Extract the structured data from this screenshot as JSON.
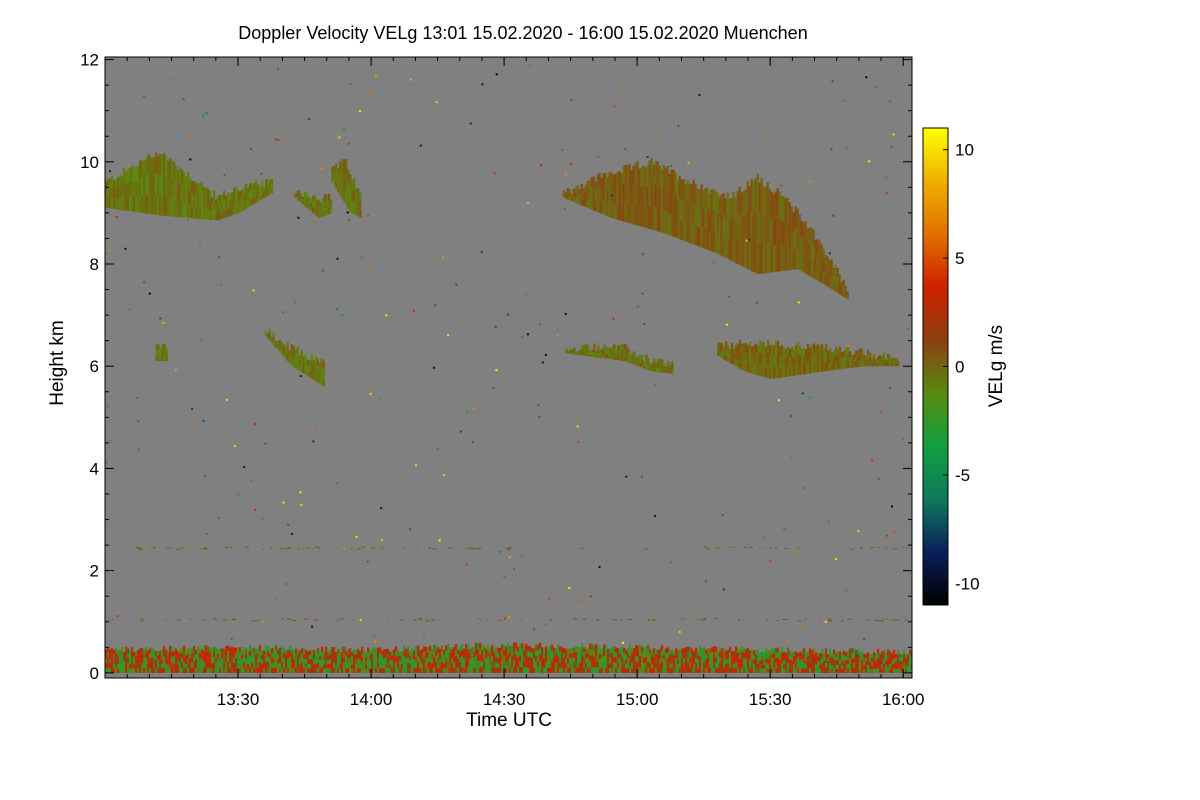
{
  "chart_data": {
    "type": "heatmap",
    "title": "Doppler Velocity VELg   13:01 15.02.2020 - 16:00 15.02.2020 Muenchen",
    "xlabel": "Time UTC",
    "ylabel": "Height km",
    "x_range_hours": [
      13.0,
      16.033
    ],
    "x_ticks": [
      {
        "value": 13.5,
        "label": "13:30"
      },
      {
        "value": 14.0,
        "label": "14:00"
      },
      {
        "value": 14.5,
        "label": "14:30"
      },
      {
        "value": 15.0,
        "label": "15:00"
      },
      {
        "value": 15.5,
        "label": "15:30"
      },
      {
        "value": 16.0,
        "label": "16:00"
      }
    ],
    "y_range_km": [
      -0.1,
      12.05
    ],
    "y_ticks": [
      {
        "value": 0,
        "label": "0"
      },
      {
        "value": 2,
        "label": "2"
      },
      {
        "value": 4,
        "label": "4"
      },
      {
        "value": 6,
        "label": "6"
      },
      {
        "value": 8,
        "label": "8"
      },
      {
        "value": 10,
        "label": "10"
      },
      {
        "value": 12,
        "label": "12"
      }
    ],
    "colorbar": {
      "label": "VELg m/s",
      "range": [
        -11,
        11
      ],
      "ticks": [
        {
          "value": 10,
          "label": "10"
        },
        {
          "value": 5,
          "label": "5"
        },
        {
          "value": 0,
          "label": "0"
        },
        {
          "value": -5,
          "label": "-5"
        },
        {
          "value": -10,
          "label": "-10"
        }
      ],
      "colors": [
        "#000000",
        "#0a1f5c",
        "#0f7a5a",
        "#10a040",
        "#5a8a10",
        "#8a4010",
        "#d02000",
        "#e07000",
        "#f0b000",
        "#ffff00"
      ]
    },
    "background_color": "#808080",
    "regions": [
      {
        "name": "cirrus-early",
        "value": -0.5,
        "t_start": 13.0,
        "t_end": 13.63,
        "base_km": [
          [
            13.0,
            9.1
          ],
          [
            13.2,
            8.95
          ],
          [
            13.42,
            8.85
          ],
          [
            13.5,
            9.0
          ],
          [
            13.63,
            9.4
          ]
        ],
        "top_km": [
          [
            13.0,
            9.6
          ],
          [
            13.1,
            9.9
          ],
          [
            13.2,
            10.2
          ],
          [
            13.3,
            9.8
          ],
          [
            13.42,
            9.3
          ],
          [
            13.5,
            9.5
          ],
          [
            13.63,
            9.6
          ]
        ]
      },
      {
        "name": "cirrus-patch-a",
        "value": -0.3,
        "t_start": 13.71,
        "t_end": 13.85,
        "base_km": [
          [
            13.71,
            9.3
          ],
          [
            13.8,
            8.9
          ],
          [
            13.85,
            9.0
          ]
        ],
        "top_km": [
          [
            13.71,
            9.45
          ],
          [
            13.8,
            9.3
          ],
          [
            13.85,
            9.3
          ]
        ]
      },
      {
        "name": "cirrus-patch-b",
        "value": -0.4,
        "t_start": 13.85,
        "t_end": 13.96,
        "base_km": [
          [
            13.85,
            9.6
          ],
          [
            13.92,
            9.0
          ],
          [
            13.96,
            8.9
          ]
        ],
        "top_km": [
          [
            13.85,
            9.9
          ],
          [
            13.9,
            10.0
          ],
          [
            13.96,
            9.3
          ]
        ]
      },
      {
        "name": "cirrus-late",
        "value": 0.3,
        "t_start": 14.72,
        "t_end": 15.79,
        "base_km": [
          [
            14.72,
            9.3
          ],
          [
            14.9,
            8.9
          ],
          [
            15.1,
            8.6
          ],
          [
            15.3,
            8.2
          ],
          [
            15.45,
            7.8
          ],
          [
            15.6,
            7.9
          ],
          [
            15.7,
            7.6
          ],
          [
            15.79,
            7.3
          ]
        ],
        "top_km": [
          [
            14.72,
            9.4
          ],
          [
            14.85,
            9.7
          ],
          [
            15.05,
            10.0
          ],
          [
            15.2,
            9.6
          ],
          [
            15.35,
            9.3
          ],
          [
            15.45,
            9.7
          ],
          [
            15.55,
            9.3
          ],
          [
            15.65,
            8.7
          ],
          [
            15.79,
            7.5
          ]
        ]
      },
      {
        "name": "midlevel-a",
        "value": -0.5,
        "t_start": 13.19,
        "t_end": 13.23,
        "base_km": [
          [
            13.19,
            6.1
          ],
          [
            13.23,
            6.1
          ]
        ],
        "top_km": [
          [
            13.19,
            6.45
          ],
          [
            13.23,
            6.4
          ]
        ]
      },
      {
        "name": "midlevel-b",
        "value": -0.4,
        "t_start": 13.6,
        "t_end": 13.82,
        "base_km": [
          [
            13.6,
            6.6
          ],
          [
            13.7,
            6.0
          ],
          [
            13.76,
            5.8
          ],
          [
            13.82,
            5.6
          ]
        ],
        "top_km": [
          [
            13.6,
            6.7
          ],
          [
            13.68,
            6.4
          ],
          [
            13.76,
            6.2
          ],
          [
            13.82,
            6.1
          ]
        ]
      },
      {
        "name": "midlevel-c",
        "value": -0.3,
        "t_start": 14.73,
        "t_end": 15.13,
        "base_km": [
          [
            14.73,
            6.25
          ],
          [
            14.95,
            6.1
          ],
          [
            15.05,
            5.9
          ],
          [
            15.13,
            5.85
          ]
        ],
        "top_km": [
          [
            14.73,
            6.3
          ],
          [
            14.85,
            6.4
          ],
          [
            14.95,
            6.35
          ],
          [
            15.05,
            6.1
          ],
          [
            15.13,
            6.05
          ]
        ]
      },
      {
        "name": "midlevel-d",
        "value": 0.0,
        "t_start": 15.3,
        "t_end": 15.98,
        "base_km": [
          [
            15.3,
            6.2
          ],
          [
            15.4,
            5.9
          ],
          [
            15.5,
            5.75
          ],
          [
            15.7,
            5.9
          ],
          [
            15.85,
            6.0
          ],
          [
            15.98,
            6.0
          ]
        ],
        "top_km": [
          [
            15.3,
            6.4
          ],
          [
            15.45,
            6.45
          ],
          [
            15.6,
            6.4
          ],
          [
            15.75,
            6.35
          ],
          [
            15.9,
            6.2
          ],
          [
            15.98,
            6.15
          ]
        ]
      },
      {
        "name": "boundary-layer",
        "value": 1.0,
        "t_start": 13.0,
        "t_end": 16.033,
        "base_km": [
          [
            13.0,
            0.0
          ],
          [
            16.033,
            0.0
          ]
        ],
        "top_km": [
          [
            13.0,
            0.45
          ],
          [
            13.5,
            0.5
          ],
          [
            14.0,
            0.45
          ],
          [
            14.5,
            0.55
          ],
          [
            15.0,
            0.5
          ],
          [
            15.5,
            0.45
          ],
          [
            16.033,
            0.4
          ]
        ]
      }
    ]
  }
}
